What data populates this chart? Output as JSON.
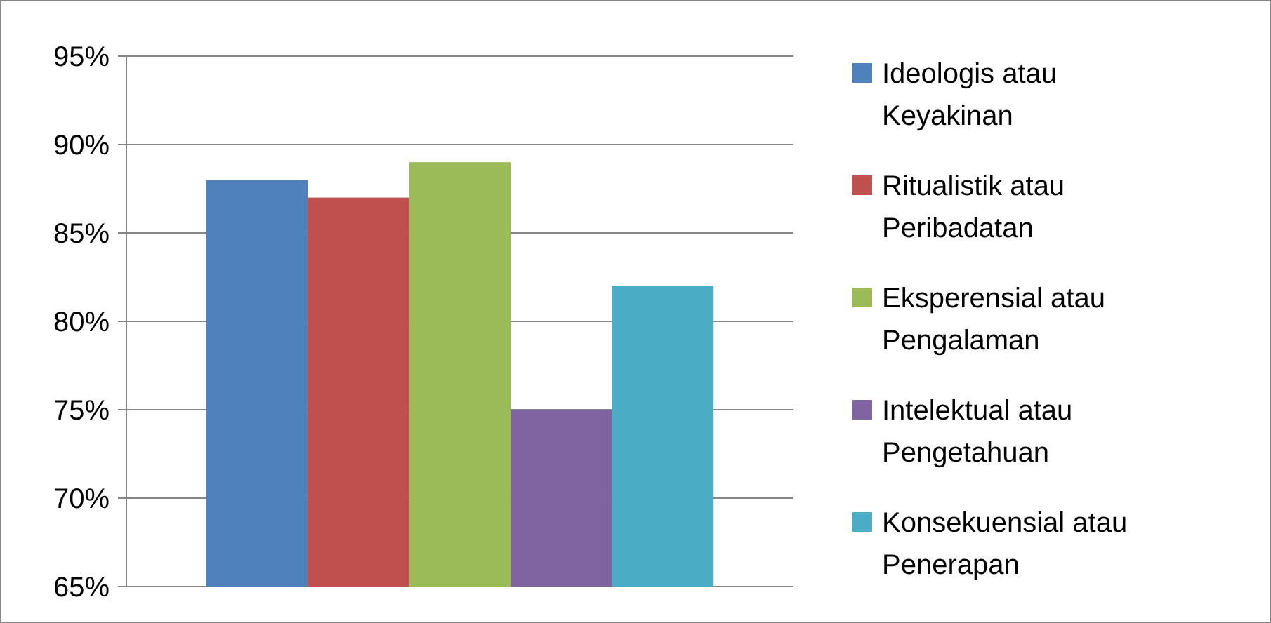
{
  "chart_data": {
    "type": "bar",
    "categories": [
      null
    ],
    "series": [
      {
        "name": "Ideologis atau Keyakinan",
        "color": "#4f81bd",
        "values": [
          88
        ]
      },
      {
        "name": "Ritualistik atau Peribadatan",
        "color": "#c0504d",
        "values": [
          87
        ]
      },
      {
        "name": "Eksperensial atau Pengalaman",
        "color": "#9bbb59",
        "values": [
          89
        ]
      },
      {
        "name": "Intelektual atau Pengetahuan",
        "color": "#8064a2",
        "values": [
          75
        ]
      },
      {
        "name": "Konsekuensial atau Penerapan",
        "color": "#4bacc6",
        "values": [
          82
        ]
      }
    ],
    "ylim": [
      65,
      95
    ],
    "yticks": [
      {
        "value": 65,
        "label": "65%"
      },
      {
        "value": 70,
        "label": "70%"
      },
      {
        "value": 75,
        "label": "75%"
      },
      {
        "value": 80,
        "label": "80%"
      },
      {
        "value": 85,
        "label": "85%"
      },
      {
        "value": 90,
        "label": "90%"
      },
      {
        "value": 95,
        "label": "95%"
      }
    ],
    "grid": "y",
    "legend": "right"
  }
}
